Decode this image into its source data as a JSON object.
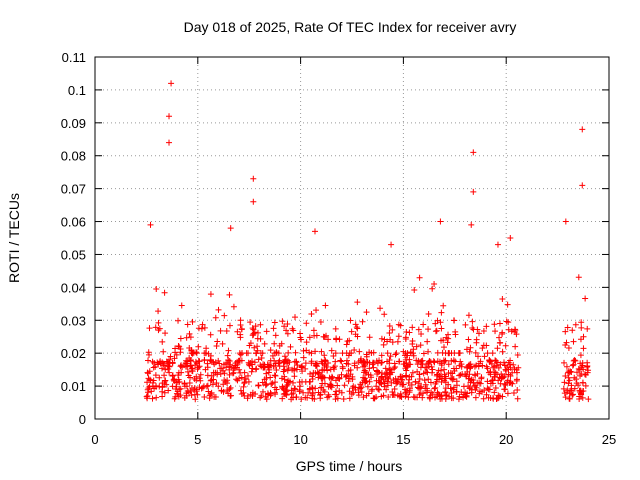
{
  "chart_data": {
    "type": "scatter",
    "title": "Day 018 of 2025, Rate Of TEC Index for receiver avry",
    "xlabel": "GPS time / hours",
    "ylabel": "ROTI / TECUs",
    "xlim": [
      0,
      25
    ],
    "ylim": [
      0,
      0.11
    ],
    "xticks": [
      "0",
      "5",
      "10",
      "15",
      "20",
      "25"
    ],
    "yticks": [
      "0",
      "0.01",
      "0.02",
      "0.03",
      "0.04",
      "0.05",
      "0.06",
      "0.07",
      "0.08",
      "0.09",
      "0.1",
      "0.11"
    ],
    "grid": true,
    "marker": "+",
    "color": "#ff0000",
    "coverage_hours": [
      [
        2.5,
        20.6
      ],
      [
        22.8,
        24.0
      ]
    ],
    "notable_points": [
      {
        "x": 3.7,
        "y": 0.102
      },
      {
        "x": 3.6,
        "y": 0.092
      },
      {
        "x": 3.6,
        "y": 0.084
      },
      {
        "x": 7.7,
        "y": 0.073
      },
      {
        "x": 7.7,
        "y": 0.066
      },
      {
        "x": 18.4,
        "y": 0.081
      },
      {
        "x": 18.4,
        "y": 0.069
      },
      {
        "x": 23.7,
        "y": 0.088
      },
      {
        "x": 23.7,
        "y": 0.071
      },
      {
        "x": 16.8,
        "y": 0.06
      },
      {
        "x": 18.3,
        "y": 0.059
      },
      {
        "x": 6.6,
        "y": 0.058
      },
      {
        "x": 10.7,
        "y": 0.057
      },
      {
        "x": 2.7,
        "y": 0.059
      },
      {
        "x": 19.6,
        "y": 0.053
      },
      {
        "x": 20.2,
        "y": 0.055
      },
      {
        "x": 22.9,
        "y": 0.06
      },
      {
        "x": 14.4,
        "y": 0.053
      }
    ]
  }
}
